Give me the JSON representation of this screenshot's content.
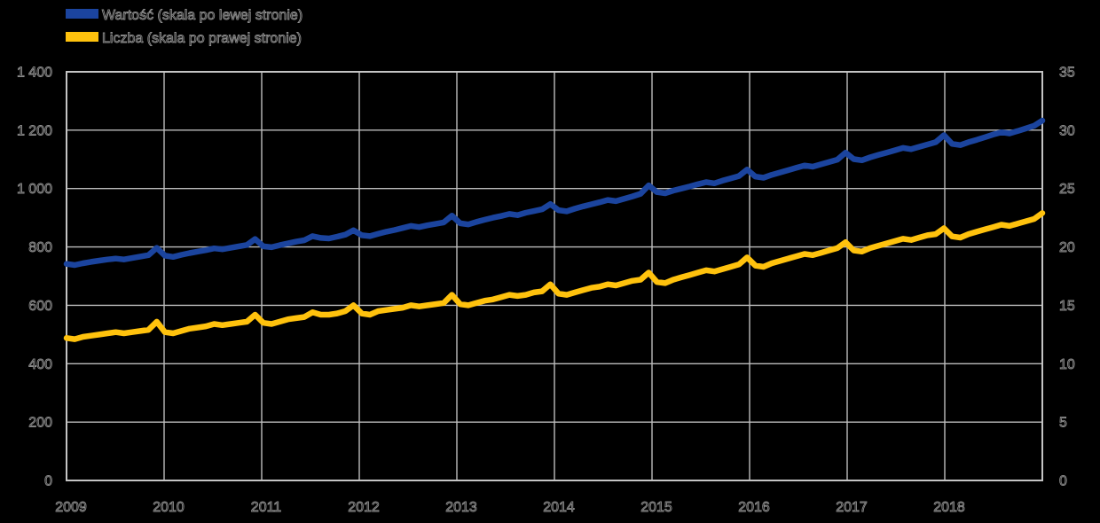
{
  "legend": {
    "items": [
      {
        "label": "Wartość (skala po lewej stronie)",
        "color": "#1B449E"
      },
      {
        "label": "Liczba (skala po prawej stronie)",
        "color": "#FFC20D"
      }
    ]
  },
  "colors": {
    "background": "#000000",
    "grid": "#BDBDBD",
    "text_outline": "#8D8D8D",
    "blue": "#1B449E",
    "yellow": "#FFC20D"
  },
  "chart_data": {
    "type": "line",
    "title": "",
    "xlabel": "",
    "ylabel_left": "",
    "ylabel_right": "",
    "grid": true,
    "legend_position": "top-left",
    "x_unit": "monthly, Jan 2009 - Dec 2018",
    "x_tick_labels": [
      "2009",
      "2010",
      "2011",
      "2012",
      "2013",
      "2014",
      "2015",
      "2016",
      "2017",
      "2018"
    ],
    "left_axis": {
      "min": 0,
      "max": 1400,
      "step": 200,
      "tick_labels_top_to_bottom": [
        "1 400",
        "1 200",
        "1 000",
        "800",
        "600",
        "400",
        "200",
        "0"
      ]
    },
    "right_axis": {
      "min": 0,
      "max": 35,
      "step": 5,
      "tick_labels_top_to_bottom": [
        "35",
        "30",
        "25",
        "20",
        "15",
        "10",
        "5",
        "0"
      ]
    },
    "series": [
      {
        "name": "Wartość (skala po lewej stronie)",
        "axis": "left",
        "color": "#1B449E",
        "values": [
          742,
          738,
          744,
          749,
          753,
          757,
          760,
          757,
          762,
          767,
          772,
          797,
          770,
          766,
          773,
          779,
          784,
          789,
          795,
          792,
          797,
          802,
          807,
          827,
          802,
          799,
          806,
          812,
          818,
          823,
          837,
          831,
          829,
          835,
          842,
          857,
          840,
          837,
          845,
          852,
          858,
          865,
          872,
          868,
          874,
          879,
          884,
          907,
          881,
          877,
          886,
          893,
          900,
          906,
          913,
          909,
          917,
          923,
          929,
          947,
          926,
          922,
          931,
          939,
          946,
          953,
          961,
          957,
          965,
          973,
          982,
          1011,
          988,
          984,
          993,
          1000,
          1007,
          1015,
          1022,
          1018,
          1027,
          1035,
          1043,
          1065,
          1041,
          1037,
          1047,
          1055,
          1063,
          1071,
          1079,
          1075,
          1083,
          1091,
          1099,
          1123,
          1101,
          1097,
          1107,
          1115,
          1123,
          1131,
          1139,
          1135,
          1143,
          1151,
          1159,
          1183,
          1153,
          1149,
          1159,
          1167,
          1176,
          1185,
          1193,
          1189,
          1197,
          1206,
          1215,
          1233
        ]
      },
      {
        "name": "Liczba (skala po prawej stronie)",
        "axis": "right",
        "color": "#FFC20D",
        "values": [
          12.2,
          12.1,
          12.3,
          12.4,
          12.5,
          12.6,
          12.7,
          12.6,
          12.7,
          12.8,
          12.9,
          13.6,
          12.7,
          12.6,
          12.8,
          13.0,
          13.1,
          13.2,
          13.4,
          13.3,
          13.4,
          13.5,
          13.6,
          14.2,
          13.5,
          13.4,
          13.6,
          13.8,
          13.9,
          14.0,
          14.4,
          14.2,
          14.2,
          14.3,
          14.5,
          15.0,
          14.3,
          14.2,
          14.5,
          14.6,
          14.7,
          14.8,
          15.0,
          14.9,
          15.0,
          15.1,
          15.2,
          15.9,
          15.1,
          15.0,
          15.2,
          15.4,
          15.5,
          15.7,
          15.9,
          15.8,
          15.9,
          16.1,
          16.2,
          16.8,
          16.0,
          15.9,
          16.1,
          16.3,
          16.5,
          16.6,
          16.8,
          16.7,
          16.9,
          17.1,
          17.2,
          17.8,
          17.0,
          16.9,
          17.2,
          17.4,
          17.6,
          17.8,
          18.0,
          17.9,
          18.1,
          18.3,
          18.5,
          19.1,
          18.4,
          18.3,
          18.6,
          18.8,
          19.0,
          19.2,
          19.4,
          19.3,
          19.5,
          19.7,
          19.9,
          20.4,
          19.7,
          19.6,
          19.9,
          20.1,
          20.3,
          20.5,
          20.7,
          20.6,
          20.8,
          21.0,
          21.1,
          21.6,
          20.9,
          20.8,
          21.1,
          21.3,
          21.5,
          21.7,
          21.9,
          21.8,
          22.0,
          22.2,
          22.4,
          22.9
        ]
      }
    ]
  }
}
